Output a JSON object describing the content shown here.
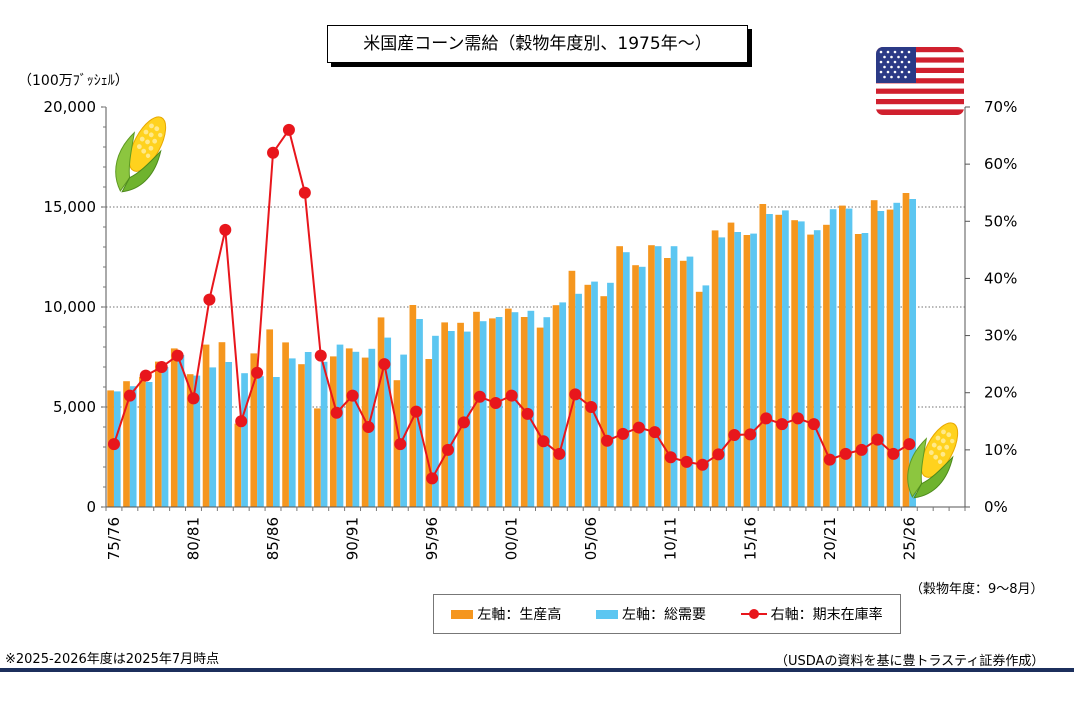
{
  "title": "米国産コーン需給（穀物年度別、1975年～）",
  "left_unit": "（100万ﾌﾞｯｼｪﾙ）",
  "fiscal_note": "（穀物年度：9～8月）",
  "legend": {
    "production": "左軸：生産高",
    "demand": "左軸：総需要",
    "stock_ratio": "右軸：期末在庫率"
  },
  "footnote_left": "※2025-2026年度は2025年7月時点",
  "footnote_right": "（USDAの資料を基に豊トラスティ証券作成）",
  "colors": {
    "production": "#f5961e",
    "demand": "#5cc6f1",
    "stock_ratio": "#e8161c"
  },
  "icons": [
    "us-flag-icon",
    "corn-icon"
  ],
  "chart_data": {
    "type": "bar",
    "combo": "bar+line (dual axis)",
    "categories": [
      "75/76",
      "76/77",
      "77/78",
      "78/79",
      "79/80",
      "80/81",
      "81/82",
      "82/83",
      "83/84",
      "84/85",
      "85/86",
      "86/87",
      "87/88",
      "88/89",
      "89/90",
      "90/91",
      "91/92",
      "92/93",
      "93/94",
      "94/95",
      "95/96",
      "96/97",
      "97/98",
      "98/99",
      "99/00",
      "00/01",
      "01/02",
      "02/03",
      "03/04",
      "04/05",
      "05/06",
      "06/07",
      "07/08",
      "08/09",
      "09/10",
      "10/11",
      "11/12",
      "12/13",
      "13/14",
      "14/15",
      "15/16",
      "16/17",
      "17/18",
      "18/19",
      "19/20",
      "20/21",
      "21/22",
      "22/23",
      "23/24",
      "24/25",
      "25/26"
    ],
    "x_tick_labels": [
      "75/76",
      "80/81",
      "85/86",
      "90/91",
      "95/96",
      "00/01",
      "05/06",
      "10/11",
      "15/16",
      "20/21",
      "25/26"
    ],
    "x_slots": 54,
    "left_axis": {
      "min": 0,
      "max": 20000,
      "step": 5000,
      "tick_labels": [
        "0",
        "5,000",
        "10,000",
        "15,000",
        "20,000"
      ]
    },
    "right_axis": {
      "min": 0,
      "max": 70,
      "step": 10,
      "tick_labels": [
        "0%",
        "10%",
        "20%",
        "30%",
        "40%",
        "50%",
        "60%",
        "70%"
      ]
    },
    "gridlines": "horizontal, dotted, at 5,000 / 10,000 / 15,000",
    "legend_position": "bottom-right",
    "series": [
      {
        "name": "左軸：生産高",
        "axis": "left",
        "type": "bar",
        "values": [
          5830,
          6290,
          6510,
          7270,
          7930,
          6640,
          8120,
          8240,
          4170,
          7680,
          8880,
          8230,
          7140,
          4930,
          7530,
          7930,
          7470,
          9480,
          6340,
          10100,
          7400,
          9230,
          9210,
          9760,
          9430,
          9920,
          9500,
          8970,
          10090,
          11810,
          11110,
          10540,
          13040,
          12090,
          13090,
          12450,
          12310,
          10760,
          13830,
          14220,
          13600,
          15150,
          14610,
          14340,
          13620,
          14110,
          15070,
          13650,
          15340,
          14870,
          15700
        ]
      },
      {
        "name": "左軸：総需要",
        "axis": "left",
        "type": "bar",
        "values": [
          5780,
          6040,
          6250,
          7000,
          7600,
          6570,
          6980,
          7250,
          6690,
          6540,
          6500,
          7430,
          7750,
          7260,
          8120,
          7760,
          7910,
          8470,
          7620,
          9400,
          8560,
          8800,
          8770,
          9290,
          9500,
          9740,
          9810,
          9490,
          10230,
          10660,
          11270,
          11210,
          12740,
          12010,
          13040,
          13040,
          12520,
          11080,
          13480,
          13750,
          13670,
          14650,
          14830,
          14280,
          13840,
          14890,
          14920,
          13700,
          14800,
          15210,
          15400
        ]
      },
      {
        "name": "右軸：期末在庫率",
        "axis": "right",
        "type": "line",
        "values": [
          11,
          19.5,
          23,
          24.5,
          26.5,
          19,
          36.3,
          48.5,
          15,
          23.5,
          62,
          66,
          55,
          26.5,
          16.5,
          19.5,
          14,
          25,
          11,
          16.7,
          5,
          10,
          14.8,
          19.3,
          18.2,
          19.5,
          16.3,
          11.5,
          9.3,
          19.7,
          17.5,
          11.6,
          12.8,
          13.9,
          13.1,
          8.7,
          7.9,
          7.4,
          9.2,
          12.6,
          12.7,
          15.5,
          14.5,
          15.5,
          14.5,
          8.3,
          9.3,
          10,
          11.8,
          9.3,
          11
        ]
      }
    ]
  }
}
